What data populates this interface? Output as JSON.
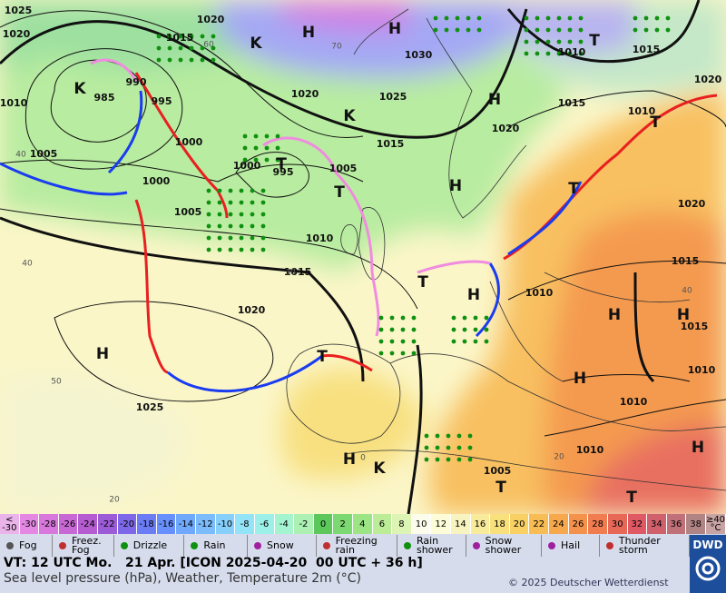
{
  "map": {
    "pressure_labels": [
      "1025",
      "1020",
      "1020",
      "1015",
      "1030",
      "1020",
      "1025",
      "1010",
      "990",
      "985",
      "995",
      "1000",
      "1005",
      "1000",
      "995",
      "1005",
      "1000",
      "1005",
      "1010",
      "1015",
      "1020",
      "1025",
      "1020",
      "1015",
      "1015",
      "1010",
      "1015",
      "1010",
      "1020",
      "1020",
      "1015",
      "1010",
      "1015",
      "1010",
      "1010",
      "1010",
      "1005"
    ],
    "system_letters": [
      "H",
      "H",
      "K",
      "H",
      "H",
      "H",
      "H",
      "H",
      "H",
      "H",
      "H",
      "H",
      "T",
      "T",
      "T",
      "T",
      "T",
      "T",
      "T",
      "T",
      "T",
      "K",
      "K",
      "K"
    ],
    "isotherm_labels": [
      "60",
      "70",
      "40",
      "40",
      "50",
      "30",
      "20",
      "20",
      "40",
      "0"
    ],
    "temperature_scale": [
      {
        "label": "< -30",
        "color": "#eab4ea"
      },
      {
        "label": "-30",
        "color": "#e488e4"
      },
      {
        "label": "-28",
        "color": "#d878dc"
      },
      {
        "label": "-26",
        "color": "#c868d4"
      },
      {
        "label": "-24",
        "color": "#b45cd0"
      },
      {
        "label": "-22",
        "color": "#9c5cd8"
      },
      {
        "label": "-20",
        "color": "#7c68e8"
      },
      {
        "label": "-18",
        "color": "#6c7cf4"
      },
      {
        "label": "-16",
        "color": "#6890fc"
      },
      {
        "label": "-14",
        "color": "#70a8fc"
      },
      {
        "label": "-12",
        "color": "#7cbcfc"
      },
      {
        "label": "-10",
        "color": "#88d0fc"
      },
      {
        "label": "-8",
        "color": "#94e4f8"
      },
      {
        "label": "-6",
        "color": "#9cf0e8"
      },
      {
        "label": "-4",
        "color": "#a4f4d0"
      },
      {
        "label": "-2",
        "color": "#acf0b4"
      },
      {
        "label": "0",
        "color": "#5cc85c"
      },
      {
        "label": "2",
        "color": "#7cd870"
      },
      {
        "label": "4",
        "color": "#9ce484"
      },
      {
        "label": "6",
        "color": "#bcec98"
      },
      {
        "label": "8",
        "color": "#dcf4b4"
      },
      {
        "label": "10",
        "color": "#fcfcec"
      },
      {
        "label": "12",
        "color": "#fcfcd8"
      },
      {
        "label": "14",
        "color": "#f8f4c0"
      },
      {
        "label": "16",
        "color": "#f8ec9c"
      },
      {
        "label": "18",
        "color": "#f8e07c"
      },
      {
        "label": "20",
        "color": "#f8d064"
      },
      {
        "label": "22",
        "color": "#f8bc54"
      },
      {
        "label": "24",
        "color": "#f8a84c"
      },
      {
        "label": "26",
        "color": "#f4924c"
      },
      {
        "label": "28",
        "color": "#f07c50"
      },
      {
        "label": "30",
        "color": "#e86858"
      },
      {
        "label": "32",
        "color": "#e05864"
      },
      {
        "label": "34",
        "color": "#d0606c"
      },
      {
        "label": "36",
        "color": "#c07078"
      },
      {
        "label": "38",
        "color": "#b08484"
      },
      {
        "label": "≥40 °C",
        "color": "#c8a4a4"
      }
    ],
    "weather_legend": [
      "Fog",
      "Freez. Fog",
      "Drizzle",
      "Rain",
      "Snow",
      "Freezing rain",
      "Rain shower",
      "Snow shower",
      "Hail",
      "Thunder storm"
    ],
    "footer": {
      "valid_time": "VT: 12 UTC Mo.   21 Apr. [ICON 2025-04-20  00 UTC + 36 h]",
      "description": "Sea level pressure (hPa), Weather, Temperature 2m (°C)",
      "copyright": "© 2025 Deutscher Wetterdienst",
      "logo": "DWD"
    }
  }
}
